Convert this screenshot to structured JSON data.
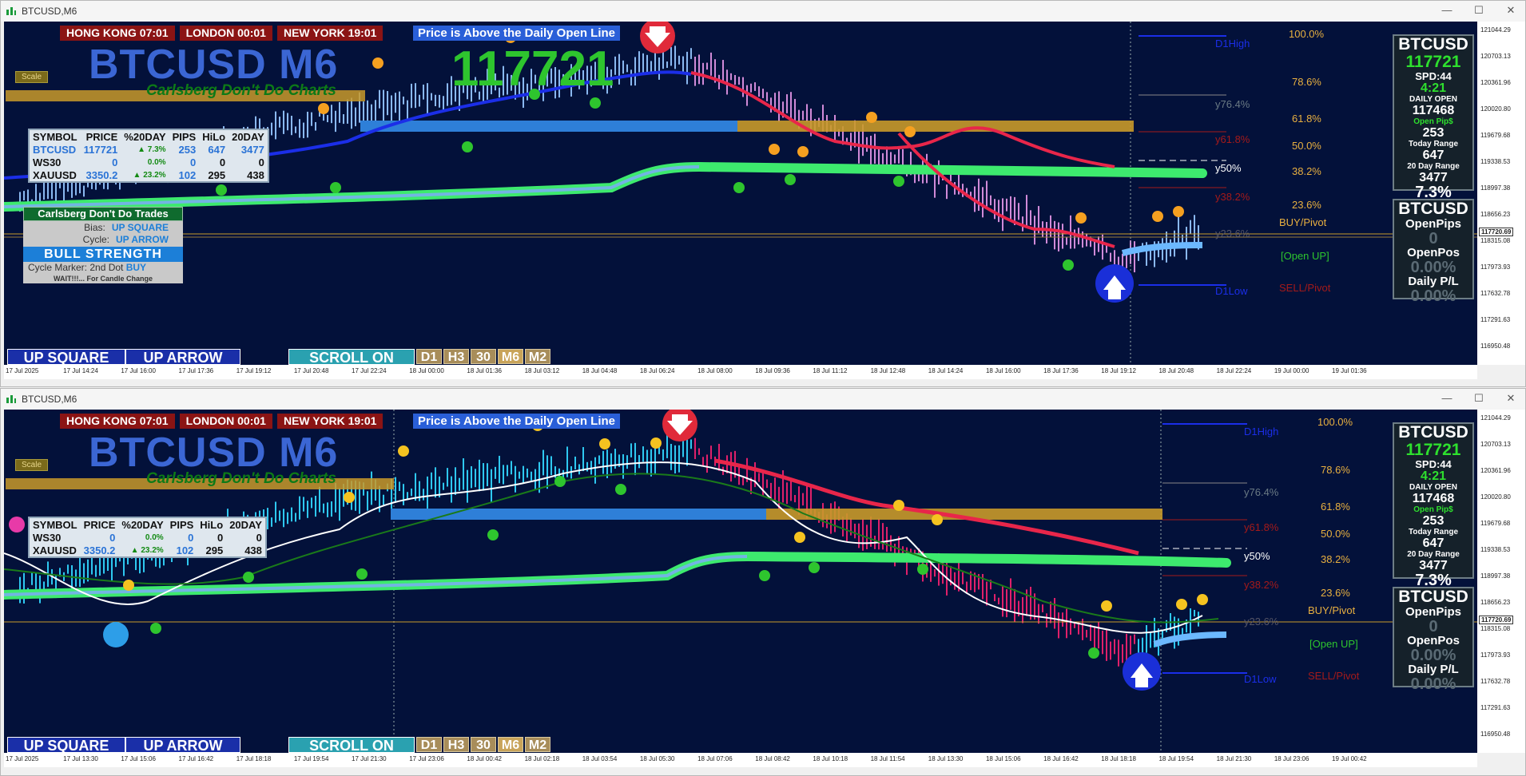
{
  "window_title": "BTCUSD,M6",
  "window_controls": [
    "—",
    "☐",
    "✕"
  ],
  "colors": {
    "chart_bg": "#03113a",
    "green_band": "#3dea6e",
    "red_ma": "#e8264a",
    "blue_ma": "#1b2ee8",
    "orange_zone": "#c99a2a",
    "blue_zone": "#2e7fd8"
  },
  "sessions": [
    {
      "label": "HONG KONG 07:01"
    },
    {
      "label": "LONDON  00:01"
    },
    {
      "label": "NEW YORK  19:01"
    }
  ],
  "open_line_msg": "Price is Above the Daily Open Line",
  "symbol_title": "BTCUSD M6",
  "carlsberg": "Carlsberg Don't Do Charts",
  "big_price": "117721",
  "scale_label": "Scale",
  "symbol_table": {
    "headers": [
      "SYMBOL",
      "PRICE",
      "%20DAY",
      "PIPS",
      "HiLo",
      "20DAY"
    ],
    "rows": [
      {
        "symbol": "BTCUSD",
        "price": "117721",
        "pct": "▲ 7.3%",
        "pips": "253",
        "hilo": "647",
        "day20": "3477"
      },
      {
        "symbol": "WS30",
        "price": "0",
        "pct": "0.0%",
        "pips": "0",
        "hilo": "0",
        "day20": "0"
      },
      {
        "symbol": "XAUUSD",
        "price": "3350.2",
        "pct": "▲ 23.2%",
        "pips": "102",
        "hilo": "295",
        "day20": "438"
      }
    ]
  },
  "trade_box": {
    "header": "Carlsberg Don't Do Trades",
    "bias_label": "Bias:",
    "bias_value": "UP SQUARE",
    "cycle_label": "Cycle:",
    "cycle_value": "UP ARROW",
    "strength": "BULL STRENGTH",
    "marker_label": "Cycle Marker: 2nd Dot",
    "marker_value": "BUY",
    "wait": "WAIT!!!... For Candle Change"
  },
  "buttons": {
    "up_square": "UP SQUARE",
    "up_arrow": "UP ARROW",
    "scroll": "SCROLL ON"
  },
  "timeframes": [
    "D1",
    "H3",
    "30",
    "M6",
    "M2"
  ],
  "right_panel": {
    "symbol": "BTCUSD",
    "price": "117721",
    "spread": "SPD:44",
    "timer": "4:21",
    "daily_open_label": "DAILY OPEN",
    "daily_open": "117468",
    "open_pips_label": "Open Pip$",
    "open_pips": "253",
    "today_range_label": "Today Range",
    "today_range": "647",
    "day20_label": "20 Day Range",
    "day20": "3477",
    "pct": "7.3%"
  },
  "pos_panel": {
    "symbol": "BTCUSD",
    "open_pips_label": "OpenPips",
    "open_pips": "0",
    "open_pos_label": "OpenPos",
    "open_pos": "0.00%",
    "daily_pl_label": "Daily P/L",
    "daily_pl": "0.00%"
  },
  "fib_levels": [
    "100.0%",
    "78.6%",
    "61.8%",
    "50.0%",
    "38.2%",
    "23.6%"
  ],
  "fib_side_labels": [
    "D1High",
    "y76.4%",
    "y61.8%",
    "y50%",
    "y38.2%",
    "y23.6%",
    "D1Low"
  ],
  "pivots": {
    "buy": "BUY/Pivot",
    "open": "[Open UP]",
    "sell": "SELL/Pivot"
  },
  "price_scale_1": [
    "121044.29",
    "120703.13",
    "120361.96",
    "120020.80",
    "119679.68",
    "119338.53",
    "118997.38",
    "118656.23",
    "118315.08",
    "117973.93",
    "117632.78",
    "117291.63",
    "116950.48"
  ],
  "price_scale_2": [
    "121044.29",
    "120703.13",
    "120361.96",
    "120020.80",
    "119679.68",
    "119338.53",
    "118997.38",
    "118656.23",
    "118315.08",
    "117973.93",
    "117632.78",
    "117291.63",
    "116950.48"
  ],
  "price_tag": "117720.69",
  "time_axis_1": [
    "17 Jul 2025",
    "17 Jul 14:24",
    "17 Jul 16:00",
    "17 Jul 17:36",
    "17 Jul 19:12",
    "17 Jul 20:48",
    "17 Jul 22:24",
    "18 Jul 00:00",
    "18 Jul 01:36",
    "18 Jul 03:12",
    "18 Jul 04:48",
    "18 Jul 06:24",
    "18 Jul 08:00",
    "18 Jul 09:36",
    "18 Jul 11:12",
    "18 Jul 12:48",
    "18 Jul 14:24",
    "18 Jul 16:00",
    "18 Jul 17:36",
    "18 Jul 19:12",
    "18 Jul 20:48",
    "18 Jul 22:24",
    "19 Jul 00:00",
    "19 Jul 01:36"
  ],
  "time_axis_2": [
    "17 Jul 2025",
    "17 Jul 13:30",
    "17 Jul 15:06",
    "17 Jul 16:42",
    "17 Jul 18:18",
    "17 Jul 19:54",
    "17 Jul 21:30",
    "17 Jul 23:06",
    "18 Jul 00:42",
    "18 Jul 02:18",
    "18 Jul 03:54",
    "18 Jul 05:30",
    "18 Jul 07:06",
    "18 Jul 08:42",
    "18 Jul 10:18",
    "18 Jul 11:54",
    "18 Jul 13:30",
    "18 Jul 15:06",
    "18 Jul 16:42",
    "18 Jul 18:18",
    "18 Jul 19:54",
    "18 Jul 21:30",
    "18 Jul 23:06",
    "19 Jul 00:42"
  ]
}
